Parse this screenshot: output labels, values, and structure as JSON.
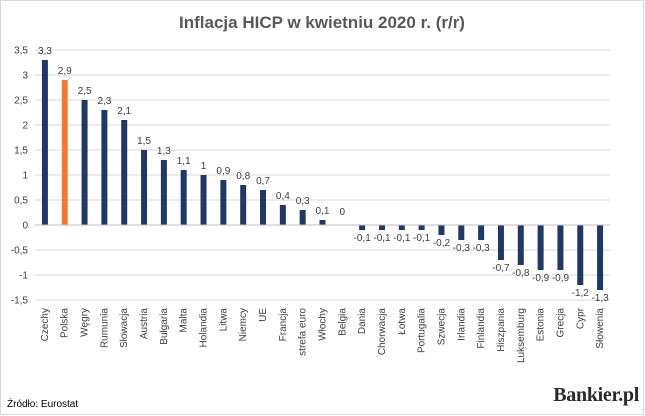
{
  "chart_data": {
    "type": "bar",
    "title": "Inflacja HICP w kwietniu 2020 r. (r/r)",
    "xlabel": "",
    "ylabel": "",
    "ylim": [
      -1.5,
      3.5
    ],
    "ytick_values": [
      -1.5,
      -1,
      -0.5,
      0,
      0.5,
      1,
      1.5,
      2,
      2.5,
      3,
      3.5
    ],
    "ytick_labels": [
      "-1,5",
      "-1",
      "-0,5",
      "0",
      "0,5",
      "1",
      "1,5",
      "2",
      "2,5",
      "3",
      "3,5"
    ],
    "grid": true,
    "legend": "none",
    "categories": [
      "Czechy",
      "Polska",
      "Węgry",
      "Rumunia",
      "Słowacja",
      "Austria",
      "Bułgaria",
      "Malta",
      "Holandia",
      "Litwa",
      "Niemcy",
      "UE",
      "Francja",
      "strefa euro",
      "Włochy",
      "Belgia",
      "Dania",
      "Chorwacja",
      "Łotwa",
      "Portugalia",
      "Szwecja",
      "Irlandia",
      "Finlandia",
      "Hiszpania",
      "Luksemburg",
      "Estonia",
      "Grecja",
      "Cypr",
      "Słowenia"
    ],
    "values": [
      3.3,
      2.9,
      2.5,
      2.3,
      2.1,
      1.5,
      1.3,
      1.1,
      1,
      0.9,
      0.8,
      0.7,
      0.4,
      0.3,
      0.1,
      0,
      -0.1,
      -0.1,
      -0.1,
      -0.1,
      -0.2,
      -0.3,
      -0.3,
      -0.7,
      -0.8,
      -0.9,
      -0.9,
      -1.2,
      -1.3
    ],
    "value_labels": [
      "3,3",
      "2,9",
      "2,5",
      "2,3",
      "2,1",
      "1,5",
      "1,3",
      "1,1",
      "1",
      "0,9",
      "0,8",
      "0,7",
      "0,4",
      "0,3",
      "0,1",
      "0",
      "-0,1",
      "-0,1",
      "-0,1",
      "-0,1",
      "-0,2",
      "-0,3",
      "-0,3",
      "-0,7",
      "-0,8",
      "-0,9",
      "-0,9",
      "-1,2",
      "-1,3"
    ],
    "bar_color": "#1f3864",
    "highlight_color": "#ed7d31",
    "highlight_category": "Polska",
    "gridline_color": "#d9d9d9"
  },
  "footer": {
    "source": "Źródło: Eurostat",
    "logo": "Bankier.pl"
  }
}
